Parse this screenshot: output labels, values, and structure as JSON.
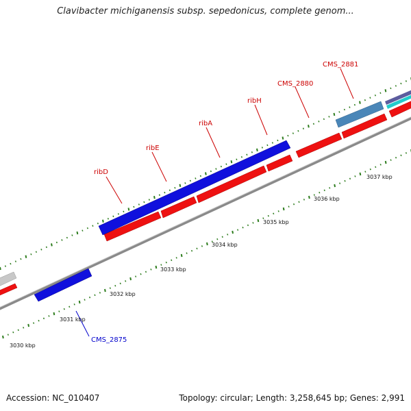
{
  "title": "Clavibacter michiganensis subsp. sepedonicus, complete genom...",
  "footer": {
    "accession": "Accession: NC_010407",
    "summary": "Topology: circular; Length: 3,258,645 bp; Genes: 2,991"
  },
  "colors": {
    "gene_red": "#ee1111",
    "gene_blue": "#1010dd",
    "gene_steel": "#4a86b8",
    "backbone": "#8a8a8a",
    "tick_green": "#2e7d1e",
    "label_red": "#cc0000",
    "label_blue": "#0000cc"
  },
  "kbp_labels": [
    "3030 kbp",
    "3031 kbp",
    "3032 kbp",
    "3033 kbp",
    "3034 kbp",
    "3035 kbp",
    "3036 kbp",
    "3037 kbp"
  ],
  "gene_labels": [
    {
      "name": "ribD",
      "color": "red"
    },
    {
      "name": "ribE",
      "color": "red"
    },
    {
      "name": "ribA",
      "color": "red"
    },
    {
      "name": "ribH",
      "color": "red"
    },
    {
      "name": "CMS_2880",
      "color": "red"
    },
    {
      "name": "CMS_2881",
      "color": "red"
    },
    {
      "name": "CMS_2875",
      "color": "blue"
    }
  ]
}
